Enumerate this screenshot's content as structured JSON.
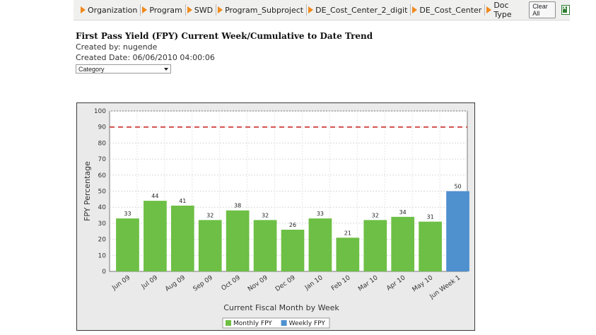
{
  "filters": [
    {
      "label": "Organization"
    },
    {
      "label": "Program"
    },
    {
      "label": "SWD"
    },
    {
      "label": "Program_Subproject"
    },
    {
      "label": "DE_Cost_Center_2_digit"
    },
    {
      "label": "DE_Cost_Center"
    },
    {
      "label": "Doc Type"
    }
  ],
  "toolbar": {
    "clear_label": "Clear All",
    "export_icon": "excel-icon"
  },
  "report": {
    "title": "First Pass Yield (FPY) Current Week/Cumulative to Date Trend",
    "created_by": "Created by:  nugende",
    "created_date": "Created Date:  06/06/2010 04:00:06",
    "category_select": "Category"
  },
  "chart_data": {
    "type": "bar",
    "categories": [
      "Jun 09",
      "Jul 09",
      "Aug 09",
      "Sep 09",
      "Oct 09",
      "Nov 09",
      "Dec 09",
      "Jan 10",
      "Feb 10",
      "Mar 10",
      "Apr 10",
      "May 10",
      "Jun Week 1"
    ],
    "series": [
      {
        "name": "Monthly FPY",
        "color": "#6dbf45",
        "values": [
          33,
          44,
          41,
          32,
          38,
          32,
          26,
          33,
          21,
          32,
          34,
          31,
          null
        ]
      },
      {
        "name": "Weekly FPY",
        "color": "#4f90cf",
        "values": [
          null,
          null,
          null,
          null,
          null,
          null,
          null,
          null,
          null,
          null,
          null,
          null,
          50
        ]
      }
    ],
    "target_line": {
      "value": 90,
      "color": "#d24a4a",
      "style": "dashed"
    },
    "ylabel": "FPY Percentage",
    "xlabel": "Current Fiscal Month by Week",
    "ylim": [
      0,
      100
    ],
    "yticks": [
      0,
      10,
      20,
      30,
      40,
      50,
      60,
      70,
      80,
      90,
      100
    ],
    "grid": true,
    "legend_position": "bottom"
  }
}
